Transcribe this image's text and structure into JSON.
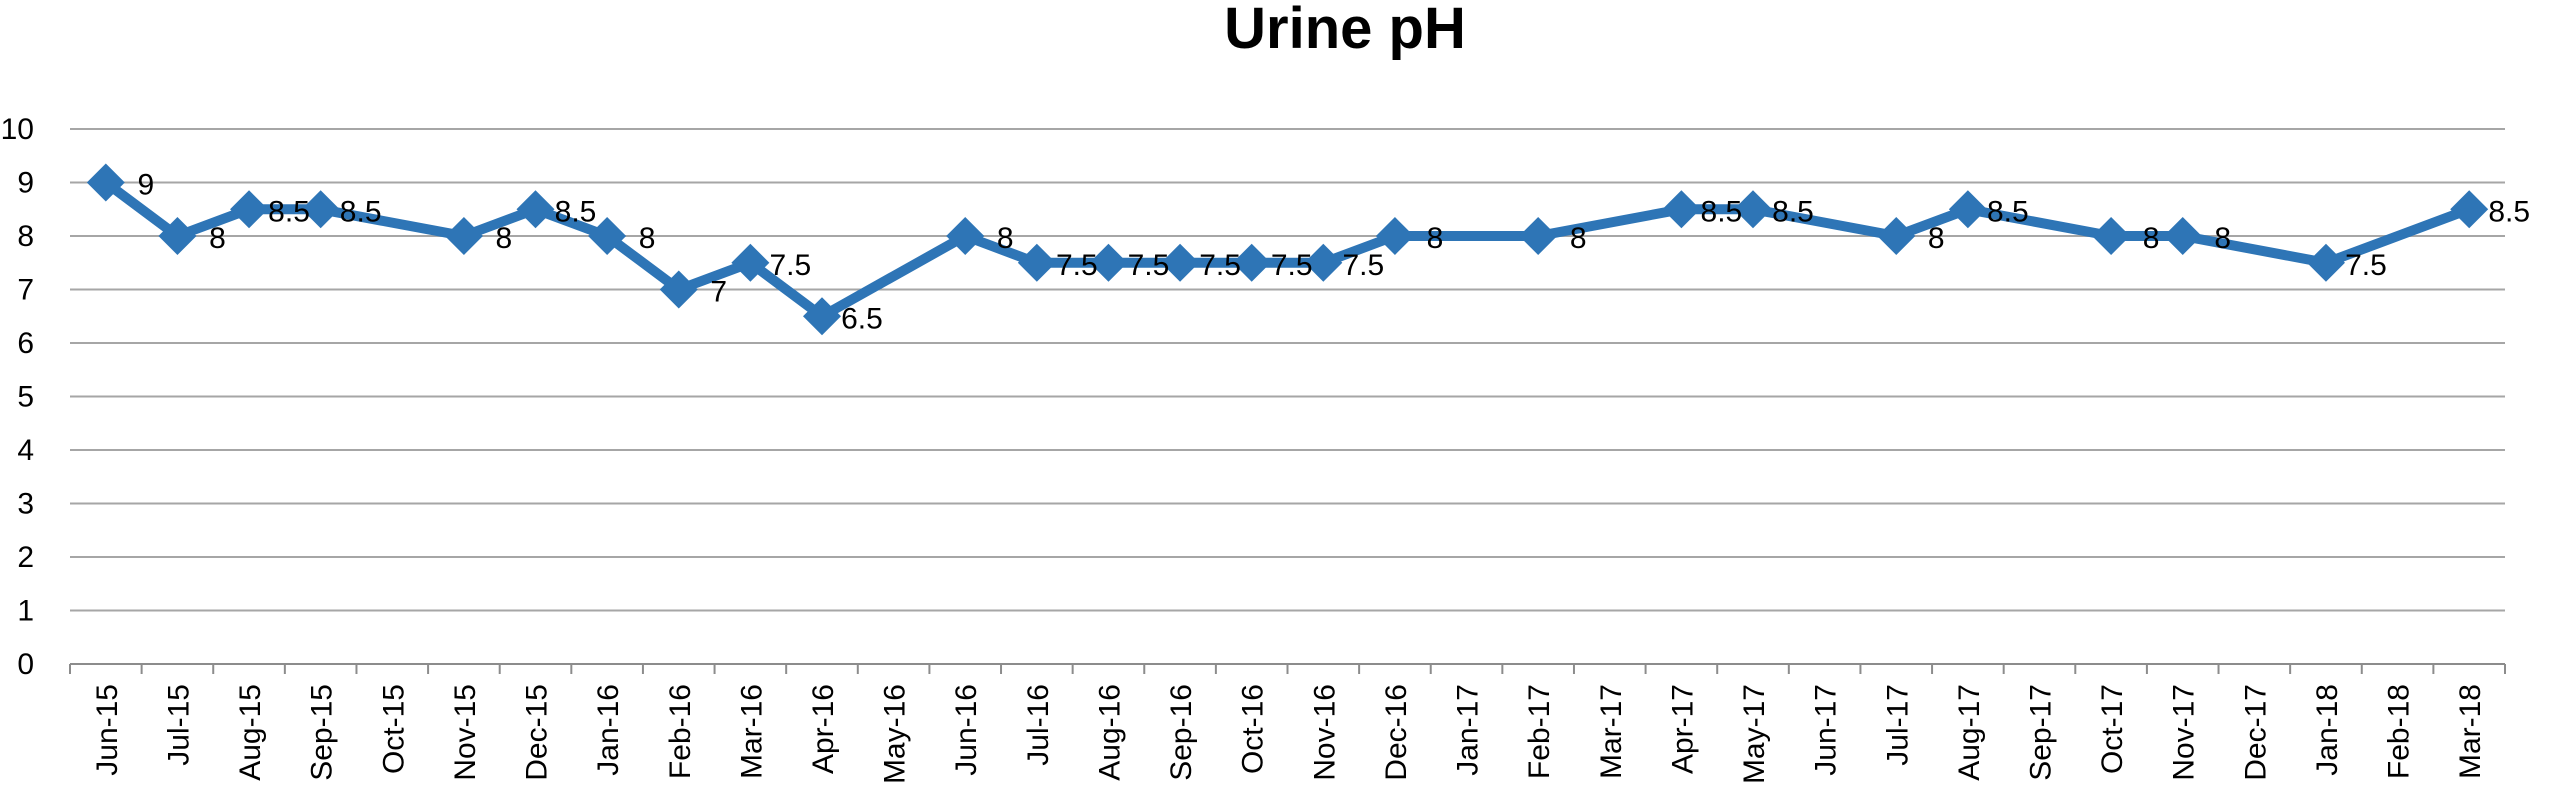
{
  "chart_data": {
    "type": "line",
    "title": "Urine pH",
    "xlabel": "",
    "ylabel": "",
    "ylim": [
      0,
      10
    ],
    "yticks": [
      0,
      1,
      2,
      3,
      4,
      5,
      6,
      7,
      8,
      9,
      10
    ],
    "grid": true,
    "legend": "none",
    "categories": [
      "Jun-15",
      "Jul-15",
      "Aug-15",
      "Sep-15",
      "Oct-15",
      "Nov-15",
      "Dec-15",
      "Jan-16",
      "Feb-16",
      "Mar-16",
      "Apr-16",
      "May-16",
      "Jun-16",
      "Jul-16",
      "Aug-16",
      "Sep-16",
      "Oct-16",
      "Nov-16",
      "Dec-16",
      "Jan-17",
      "Feb-17",
      "Mar-17",
      "Apr-17",
      "May-17",
      "Jun-17",
      "Jul-17",
      "Aug-17",
      "Sep-17",
      "Oct-17",
      "Nov-17",
      "Dec-17",
      "Jan-18",
      "Feb-18",
      "Mar-18"
    ],
    "series": [
      {
        "values": [
          9,
          8,
          8.5,
          8.5,
          null,
          8,
          8.5,
          8,
          7,
          7.5,
          6.5,
          null,
          8,
          7.5,
          7.5,
          7.5,
          7.5,
          7.5,
          8,
          null,
          8,
          null,
          8.5,
          8.5,
          null,
          8,
          8.5,
          null,
          8,
          8,
          null,
          7.5,
          null,
          8.5
        ],
        "color": "#2e75b6"
      }
    ],
    "data_labels": [
      "9",
      "8",
      "8.5",
      "8.5",
      "",
      "8",
      "8.5",
      "8",
      "7",
      "7.5",
      "6.5",
      "",
      "8",
      "7.5",
      "7.5",
      "7.5",
      "7.5",
      "7.5",
      "8",
      "",
      "8",
      "",
      "8.5",
      "8.5",
      "",
      "8",
      "8.5",
      "",
      "8",
      "8",
      "",
      "7.5",
      "",
      "8.5"
    ]
  }
}
